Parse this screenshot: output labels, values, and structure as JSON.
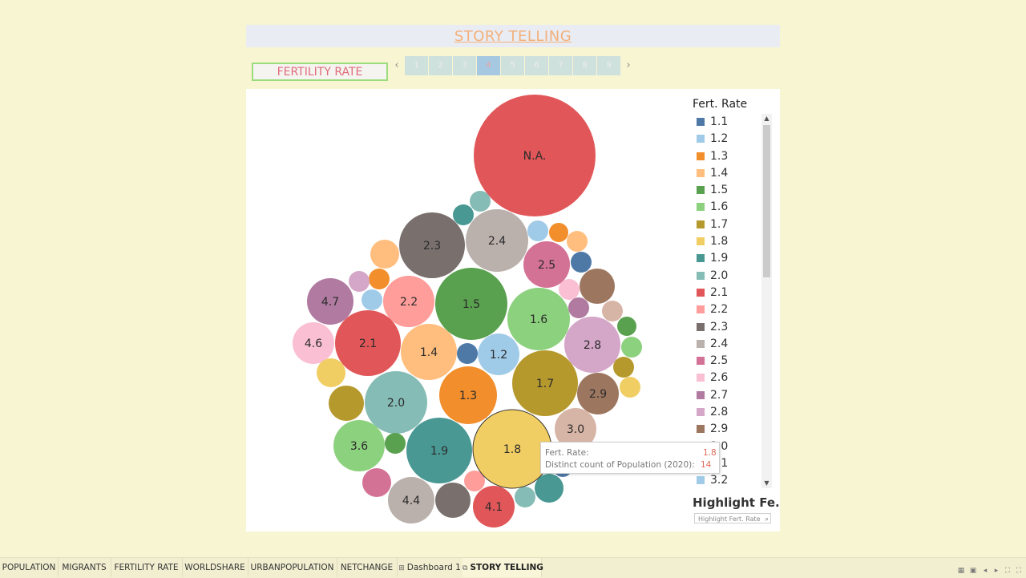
{
  "story": {
    "title": "STORY TELLING",
    "caption": "FERTILITY RATE",
    "pages": [
      "1",
      "2",
      "3",
      "4",
      "5",
      "6",
      "7",
      "8",
      "9"
    ],
    "active_page": 3
  },
  "legend": {
    "title": "Fert. Rate",
    "items": [
      {
        "label": "1.1",
        "color": "#4e79a7"
      },
      {
        "label": "1.2",
        "color": "#a0cbe8"
      },
      {
        "label": "1.3",
        "color": "#f28e2b"
      },
      {
        "label": "1.4",
        "color": "#ffbe7d"
      },
      {
        "label": "1.5",
        "color": "#59a14f"
      },
      {
        "label": "1.6",
        "color": "#8cd17d"
      },
      {
        "label": "1.7",
        "color": "#b6992d"
      },
      {
        "label": "1.8",
        "color": "#f1ce63"
      },
      {
        "label": "1.9",
        "color": "#499894"
      },
      {
        "label": "2.0",
        "color": "#86bcb6"
      },
      {
        "label": "2.1",
        "color": "#e15759"
      },
      {
        "label": "2.2",
        "color": "#ff9d9a"
      },
      {
        "label": "2.3",
        "color": "#79706e"
      },
      {
        "label": "2.4",
        "color": "#bab0ac"
      },
      {
        "label": "2.5",
        "color": "#d37295"
      },
      {
        "label": "2.6",
        "color": "#fabfd2"
      },
      {
        "label": "2.7",
        "color": "#b07aa1"
      },
      {
        "label": "2.8",
        "color": "#d4a6c8"
      },
      {
        "label": "2.9",
        "color": "#9d7660"
      },
      {
        "label": "3.0",
        "color": "#d7b5a6"
      },
      {
        "label": "3.1",
        "color": "#4e79a7"
      },
      {
        "label": "3.2",
        "color": "#a0cbe8"
      }
    ]
  },
  "highlight": {
    "title": "Highlight Fe..",
    "placeholder": "Highlight Fert. Rate"
  },
  "tooltip": {
    "label1": "Fert. Rate:",
    "value1": "1.8",
    "label2": "Distinct count of Population (2020):",
    "value2": "14"
  },
  "chart_data": {
    "type": "bubble",
    "legend_placement": "right",
    "bubbles": [
      {
        "label": "N.A.",
        "color": "#e15759",
        "show_label": true
      },
      {
        "label": "2.3",
        "color": "#79706e",
        "show_label": true
      },
      {
        "label": "2.4",
        "color": "#bab0ac",
        "show_label": true
      },
      {
        "label": "2.5",
        "color": "#d37295",
        "show_label": true
      },
      {
        "label": "2.2",
        "color": "#ff9d9a",
        "show_label": true
      },
      {
        "label": "1.5",
        "color": "#59a14f",
        "show_label": true
      },
      {
        "label": "1.6",
        "color": "#8cd17d",
        "show_label": true
      },
      {
        "label": "4.7",
        "color": "#b07aa1",
        "show_label": true
      },
      {
        "label": "4.6",
        "color": "#fabfd2",
        "show_label": true
      },
      {
        "label": "2.1",
        "color": "#e15759",
        "show_label": true
      },
      {
        "label": "1.4",
        "color": "#ffbe7d",
        "show_label": true
      },
      {
        "label": "1.2",
        "color": "#a0cbe8",
        "show_label": true
      },
      {
        "label": "2.8",
        "color": "#d4a6c8",
        "show_label": true
      },
      {
        "label": "1.7",
        "color": "#b6992d",
        "show_label": true
      },
      {
        "label": "2.0",
        "color": "#86bcb6",
        "show_label": true
      },
      {
        "label": "1.3",
        "color": "#f28e2b",
        "show_label": true
      },
      {
        "label": "2.9",
        "color": "#9d7660",
        "show_label": true
      },
      {
        "label": "3.0",
        "color": "#d7b5a6",
        "show_label": true
      },
      {
        "label": "3.6",
        "color": "#8cd17d",
        "show_label": true
      },
      {
        "label": "1.9",
        "color": "#499894",
        "show_label": true
      },
      {
        "label": "1.8",
        "color": "#f1ce63",
        "show_label": true
      },
      {
        "label": "4.4",
        "color": "#bab0ac",
        "show_label": true
      },
      {
        "label": "4.1",
        "color": "#e15759",
        "show_label": true
      },
      {
        "label": "",
        "color": "#499894",
        "show_label": false
      },
      {
        "label": "",
        "color": "#86bcb6",
        "show_label": false
      },
      {
        "label": "",
        "color": "#a0cbe8",
        "show_label": false
      },
      {
        "label": "",
        "color": "#f28e2b",
        "show_label": false
      },
      {
        "label": "",
        "color": "#ffbe7d",
        "show_label": false
      },
      {
        "label": "",
        "color": "#4e79a7",
        "show_label": false
      },
      {
        "label": "",
        "color": "#9d7660",
        "show_label": false
      },
      {
        "label": "",
        "color": "#fabfd2",
        "show_label": false
      },
      {
        "label": "",
        "color": "#b07aa1",
        "show_label": false
      },
      {
        "label": "",
        "color": "#d7b5a6",
        "show_label": false
      },
      {
        "label": "",
        "color": "#59a14f",
        "show_label": false
      },
      {
        "label": "",
        "color": "#8cd17d",
        "show_label": false
      },
      {
        "label": "",
        "color": "#b6992d",
        "show_label": false
      },
      {
        "label": "",
        "color": "#f1ce63",
        "show_label": false
      },
      {
        "label": "",
        "color": "#ffbe7d",
        "show_label": false
      },
      {
        "label": "",
        "color": "#f28e2b",
        "show_label": false
      },
      {
        "label": "",
        "color": "#d4a6c8",
        "show_label": false
      },
      {
        "label": "",
        "color": "#a0cbe8",
        "show_label": false
      },
      {
        "label": "",
        "color": "#4e79a7",
        "show_label": false
      },
      {
        "label": "",
        "color": "#f1ce63",
        "show_label": false
      },
      {
        "label": "",
        "color": "#b6992d",
        "show_label": false
      },
      {
        "label": "",
        "color": "#59a14f",
        "show_label": false
      },
      {
        "label": "",
        "color": "#d37295",
        "show_label": false
      },
      {
        "label": "",
        "color": "#79706e",
        "show_label": false
      },
      {
        "label": "",
        "color": "#ff9d9a",
        "show_label": false
      },
      {
        "label": "",
        "color": "#86bcb6",
        "show_label": false
      },
      {
        "label": "",
        "color": "#499894",
        "show_label": false
      },
      {
        "label": "",
        "color": "#4e79a7",
        "show_label": false
      }
    ]
  },
  "tabs": [
    {
      "label": "POPULATION",
      "icon": ""
    },
    {
      "label": "MIGRANTS",
      "icon": ""
    },
    {
      "label": "FERTILITY RATE",
      "icon": ""
    },
    {
      "label": "WORLDSHARE",
      "icon": ""
    },
    {
      "label": "URBANPOPULATION",
      "icon": ""
    },
    {
      "label": "NETCHANGE",
      "icon": ""
    },
    {
      "label": "Dashboard 1",
      "icon": "dashboard-icon"
    },
    {
      "label": "STORY TELLING",
      "icon": "story-icon"
    }
  ],
  "active_tab": 7
}
